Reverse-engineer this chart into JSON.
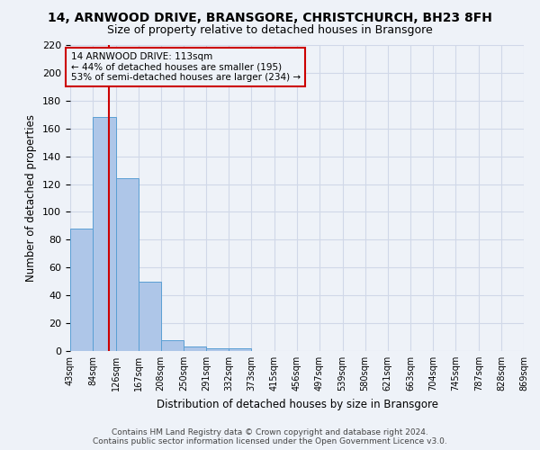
{
  "title": "14, ARNWOOD DRIVE, BRANSGORE, CHRISTCHURCH, BH23 8FH",
  "subtitle": "Size of property relative to detached houses in Bransgore",
  "xlabel": "Distribution of detached houses by size in Bransgore",
  "ylabel": "Number of detached properties",
  "footnote1": "Contains HM Land Registry data © Crown copyright and database right 2024.",
  "footnote2": "Contains public sector information licensed under the Open Government Licence v3.0.",
  "annotation_line1": "14 ARNWOOD DRIVE: 113sqm",
  "annotation_line2": "← 44% of detached houses are smaller (195)",
  "annotation_line3": "53% of semi-detached houses are larger (234) →",
  "property_size": 113,
  "bin_edges": [
    43,
    84,
    126,
    167,
    208,
    250,
    291,
    332,
    373,
    415,
    456,
    497,
    539,
    580,
    621,
    663,
    704,
    745,
    787,
    828,
    869
  ],
  "bin_counts": [
    88,
    168,
    124,
    50,
    8,
    3,
    2,
    2,
    0,
    0,
    0,
    0,
    0,
    0,
    0,
    0,
    0,
    0,
    0,
    0
  ],
  "bar_color": "#aec6e8",
  "bar_edge_color": "#5a9fd4",
  "vline_color": "#cc0000",
  "annotation_box_color": "#cc0000",
  "grid_color": "#d0d8e8",
  "bg_color": "#eef2f8",
  "ylim": [
    0,
    220
  ],
  "yticks": [
    0,
    20,
    40,
    60,
    80,
    100,
    120,
    140,
    160,
    180,
    200,
    220
  ]
}
